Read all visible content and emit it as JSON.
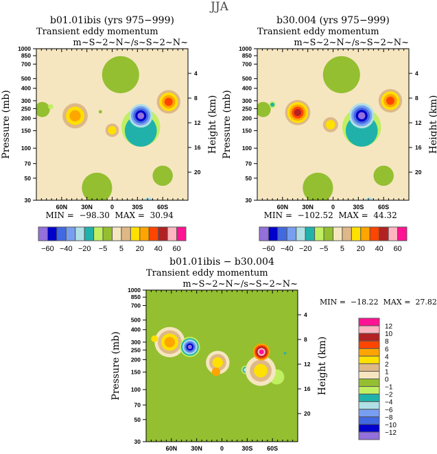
{
  "figure_title": "JJA",
  "chart_data": {
    "type": "contour",
    "x_axis": {
      "range": [
        90,
        -90
      ],
      "tick_values": [
        60,
        30,
        0,
        -30,
        -60
      ],
      "tick_labels": [
        "60N",
        "30N",
        "0",
        "30S",
        "60S"
      ]
    },
    "y_axis": {
      "label": "Pressure (mb)",
      "scale": "log",
      "range": [
        1000,
        30
      ],
      "tick_values": [
        30,
        50,
        70,
        100,
        150,
        200,
        250,
        300,
        400,
        500,
        700,
        850,
        1000
      ],
      "tick_labels": [
        "30",
        "50",
        "70",
        "100",
        "150",
        "200",
        "250",
        "300",
        "400",
        "500",
        "700",
        "850",
        "1000"
      ]
    },
    "y2_axis": {
      "label": "Height (km)",
      "tick_values": [
        4,
        8,
        12,
        16,
        20
      ],
      "tick_labels": [
        "4",
        "8",
        "12",
        "16",
        "20"
      ]
    },
    "palette": [
      "#9370DB",
      "#0000CD",
      "#4169E1",
      "#789EF0",
      "#B0E0E6",
      "#20B2AA",
      "#C1EF62",
      "#94BF31",
      "#F5E6C0",
      "#DEB887",
      "#FFE100",
      "#FFA500",
      "#FF4500",
      "#B22222",
      "#FFB6C1",
      "#FF1493"
    ],
    "panels": [
      {
        "title": "b01.01ibis (yrs 975−999)",
        "subtitle_left": "Transient eddy momentum",
        "subtitle_right": "m~S~2~N~/s~S~2~N~",
        "min_label": "MIN =",
        "min": "−98.30",
        "max_label": "MAX =",
        "max": "30.94",
        "colorbar_labels": [
          "−60",
          "−40",
          "−20",
          "−5",
          "5",
          "20",
          "40",
          "60"
        ],
        "background_level": 8,
        "features": [
          {
            "lat": 83,
            "p": [
              40,
              1500
            ],
            "hw": 9,
            "levels": [
              7
            ]
          },
          {
            "lat": 18,
            "p": [
              20,
              80
            ],
            "hw": 18,
            "levels": [
              7
            ]
          },
          {
            "lat": -10,
            "p": [
              200,
              1500
            ],
            "hw": 22,
            "levels": [
              7
            ]
          },
          {
            "lat": -60,
            "p": [
              20,
              140
            ],
            "hw": 12,
            "levels": [
              7
            ]
          },
          {
            "lat": 73,
            "p": [
              170,
              400
            ],
            "hw": 3,
            "levels": [
              6
            ]
          },
          {
            "lat": 14,
            "p": [
              180,
              300
            ],
            "hw": 2,
            "levels": [
              7
            ]
          },
          {
            "lat": -34,
            "p": [
              22,
              1200
            ],
            "hw": 23,
            "levels": [
              6
            ]
          },
          {
            "lat": -34,
            "p": [
              25,
              900
            ],
            "hw": 19,
            "levels": [
              5
            ]
          },
          {
            "lat": -43,
            "p": [
              18,
              45
            ],
            "hw": 6,
            "levels": [
              4
            ]
          },
          {
            "lat": -34,
            "p": [
              80,
              560
            ],
            "hw": 14,
            "levels": [
              4,
              3,
              2,
              1,
              0
            ]
          },
          {
            "lat": 44,
            "p": [
              80,
              560
            ],
            "hw": 15,
            "levels": [
              9,
              10,
              11
            ]
          },
          {
            "lat": 0,
            "p": [
              85,
              270
            ],
            "hw": 8,
            "levels": [
              9,
              10
            ]
          },
          {
            "lat": -67,
            "p": [
              95,
              900
            ],
            "hw": 14,
            "levels": [
              9,
              10,
              11,
              12
            ]
          }
        ]
      },
      {
        "title": "b30.004 (yrs 975−999)",
        "subtitle_left": "Transient eddy momentum",
        "subtitle_right": "m~S~2~N~/s~S~2~N~",
        "min_label": "MIN =",
        "min": "−102.52",
        "max_label": "MAX =",
        "max": "44.32",
        "colorbar_labels": [
          "−60",
          "−40",
          "−20",
          "−5",
          "5",
          "20",
          "40",
          "60"
        ],
        "background_level": 8,
        "features": [
          {
            "lat": 83,
            "p": [
              40,
              1500
            ],
            "hw": 9,
            "levels": [
              7
            ]
          },
          {
            "lat": 18,
            "p": [
              20,
              80
            ],
            "hw": 18,
            "levels": [
              7
            ]
          },
          {
            "lat": -10,
            "p": [
              200,
              1500
            ],
            "hw": 22,
            "levels": [
              7
            ]
          },
          {
            "lat": -60,
            "p": [
              20,
              140
            ],
            "hw": 12,
            "levels": [
              7
            ]
          },
          {
            "lat": 72,
            "p": [
              150,
              500
            ],
            "hw": 4,
            "levels": [
              6,
              5
            ]
          },
          {
            "lat": -34,
            "p": [
              22,
              1200
            ],
            "hw": 23,
            "levels": [
              6
            ]
          },
          {
            "lat": -34,
            "p": [
              25,
              900
            ],
            "hw": 19,
            "levels": [
              5
            ]
          },
          {
            "lat": -43,
            "p": [
              18,
              45
            ],
            "hw": 6,
            "levels": [
              4
            ]
          },
          {
            "lat": -34,
            "p": [
              75,
              600
            ],
            "hw": 15,
            "levels": [
              4,
              3,
              2,
              1,
              0
            ]
          },
          {
            "lat": 42,
            "p": [
              80,
              650
            ],
            "hw": 15,
            "levels": [
              9,
              10,
              11,
              12,
              13
            ]
          },
          {
            "lat": 3,
            "p": [
              90,
              330
            ],
            "hw": 9,
            "levels": [
              9,
              10
            ]
          },
          {
            "lat": -68,
            "p": [
              100,
              900
            ],
            "hw": 14,
            "levels": [
              9,
              10,
              11,
              12
            ]
          }
        ]
      },
      {
        "title": "b01.01ibis − b30.004",
        "subtitle_left": "Transient eddy momentum",
        "subtitle_right": "m~S~2~N~/s~S~2~N~",
        "min_label": "MIN =",
        "min": "−18.22",
        "max_label": "MAX =",
        "max": "27.82",
        "colorbar_labels": [
          "12",
          "10",
          "8",
          "6",
          "4",
          "2",
          "1",
          "0",
          "−1",
          "−2",
          "−4",
          "−6",
          "−8",
          "−10",
          "−12"
        ],
        "background_level": 7,
        "features": [
          {
            "lat": -65,
            "p": [
              20,
              900
            ],
            "hw": 9,
            "levels": [
              6
            ]
          },
          {
            "lat": 62,
            "p": [
              60,
              1500
            ],
            "hw": 18,
            "levels": [
              8,
              9,
              10,
              11
            ]
          },
          {
            "lat": 80,
            "p": [
              250,
              420
            ],
            "hw": 4,
            "levels": [
              10
            ]
          },
          {
            "lat": 5,
            "p": [
              50,
              700
            ],
            "hw": 14,
            "levels": [
              8,
              9,
              10
            ]
          },
          {
            "lat": 7,
            "p": [
              120,
              190
            ],
            "hw": 5,
            "levels": [
              11
            ]
          },
          {
            "lat": 38,
            "p": [
              90,
              800
            ],
            "hw": 12,
            "levels": [
              6,
              5,
              4,
              3,
              2,
              1,
              0
            ]
          },
          {
            "lat": -28,
            "p": [
              100,
              250
            ],
            "hw": 5,
            "levels": [
              6,
              5,
              4
            ]
          },
          {
            "lat": -46,
            "p": [
              20,
              1200
            ],
            "hw": 18,
            "levels": [
              8,
              9,
              10
            ]
          },
          {
            "lat": -47,
            "p": [
              110,
              520
            ],
            "hw": 10,
            "levels": [
              11,
              12,
              13,
              14,
              15
            ]
          },
          {
            "lat": -75,
            "p": [
              180,
              300
            ],
            "hw": 1.5,
            "levels": [
              5
            ]
          }
        ]
      }
    ]
  }
}
